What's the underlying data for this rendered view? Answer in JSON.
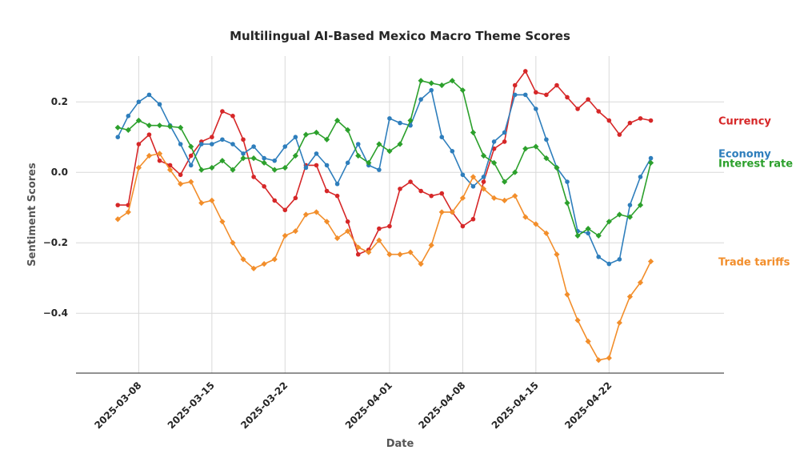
{
  "chart_data": {
    "type": "line",
    "title": "Multilingual AI-Based Mexico Macro Theme Scores",
    "xlabel": "Date",
    "ylabel": "Sentiment Scores",
    "x_start": "2025-03-06",
    "x_end": "2025-04-27",
    "xlim": [
      "2025-03-02",
      "2025-05-03"
    ],
    "ylim": [
      -0.57,
      0.33
    ],
    "x_ticks": [
      "2025-03-08",
      "2025-03-15",
      "2025-03-22",
      "2025-04-01",
      "2025-04-08",
      "2025-04-15",
      "2025-04-22"
    ],
    "y_ticks": [
      0.2,
      0.0,
      -0.2,
      -0.4
    ],
    "y_tick_labels": [
      "0.2",
      "0.0",
      "−0.2",
      "−0.4"
    ],
    "grid": true,
    "legend": "labels at line ends, right",
    "series": [
      {
        "name": "Currency",
        "color": "#d62728",
        "marker": "circle",
        "values": [
          -0.093,
          -0.093,
          0.08,
          0.107,
          0.033,
          0.02,
          -0.007,
          0.047,
          0.087,
          0.1,
          0.173,
          0.16,
          0.093,
          -0.013,
          -0.04,
          -0.08,
          -0.107,
          -0.073,
          0.02,
          0.02,
          -0.053,
          -0.067,
          -0.14,
          -0.233,
          -0.22,
          -0.16,
          -0.153,
          -0.047,
          -0.027,
          -0.053,
          -0.067,
          -0.06,
          -0.113,
          -0.153,
          -0.133,
          -0.027,
          0.067,
          0.087,
          0.247,
          0.287,
          0.227,
          0.22,
          0.247,
          0.213,
          0.18,
          0.207,
          0.173,
          0.147,
          0.107,
          0.14,
          0.153,
          0.147
        ]
      },
      {
        "name": "Economy",
        "color": "#2e7ebc",
        "marker": "circle",
        "values": [
          0.1,
          0.16,
          0.2,
          0.22,
          0.193,
          0.133,
          0.08,
          0.02,
          0.08,
          0.08,
          0.093,
          0.08,
          0.053,
          0.073,
          0.04,
          0.033,
          0.073,
          0.1,
          0.013,
          0.053,
          0.02,
          -0.033,
          0.027,
          0.08,
          0.02,
          0.007,
          0.153,
          0.14,
          0.133,
          0.207,
          0.233,
          0.1,
          0.06,
          -0.007,
          -0.04,
          -0.013,
          0.087,
          0.113,
          0.22,
          0.22,
          0.18,
          0.093,
          0.013,
          -0.027,
          -0.167,
          -0.173,
          -0.24,
          -0.26,
          -0.247,
          -0.093,
          -0.013,
          0.04
        ]
      },
      {
        "name": "Interest rate",
        "color": "#2ca02c",
        "marker": "diamond",
        "values": [
          0.127,
          0.12,
          0.147,
          0.133,
          0.133,
          0.13,
          0.127,
          0.073,
          0.007,
          0.013,
          0.033,
          0.007,
          0.04,
          0.04,
          0.027,
          0.007,
          0.013,
          0.047,
          0.107,
          0.113,
          0.093,
          0.147,
          0.12,
          0.047,
          0.027,
          0.08,
          0.06,
          0.08,
          0.147,
          0.26,
          0.253,
          0.247,
          0.26,
          0.233,
          0.113,
          0.047,
          0.027,
          -0.027,
          0.0,
          0.067,
          0.073,
          0.04,
          0.013,
          -0.087,
          -0.18,
          -0.16,
          -0.18,
          -0.14,
          -0.12,
          -0.127,
          -0.093,
          0.027
        ]
      },
      {
        "name": "Trade tariffs",
        "color": "#f28e2b",
        "marker": "diamond",
        "values": [
          -0.133,
          -0.113,
          0.013,
          0.047,
          0.053,
          0.007,
          -0.033,
          -0.027,
          -0.087,
          -0.08,
          -0.14,
          -0.2,
          -0.247,
          -0.273,
          -0.26,
          -0.247,
          -0.18,
          -0.167,
          -0.12,
          -0.113,
          -0.14,
          -0.187,
          -0.167,
          -0.213,
          -0.227,
          -0.193,
          -0.233,
          -0.233,
          -0.227,
          -0.26,
          -0.207,
          -0.113,
          -0.113,
          -0.073,
          -0.013,
          -0.047,
          -0.073,
          -0.08,
          -0.067,
          -0.127,
          -0.147,
          -0.173,
          -0.233,
          -0.347,
          -0.42,
          -0.48,
          -0.533,
          -0.527,
          -0.427,
          -0.353,
          -0.313,
          -0.253
        ]
      }
    ]
  }
}
